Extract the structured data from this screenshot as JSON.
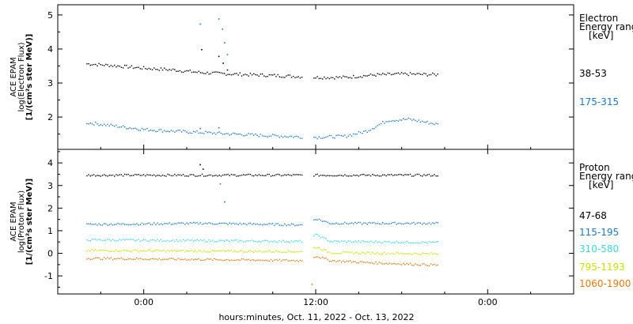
{
  "chart_data": {
    "type": "scatter",
    "xlabel": "hours:minutes, Oct. 11, 2022 - Oct. 13, 2022",
    "x_ticks": [
      "0:00",
      "12:00",
      "0:00"
    ],
    "panels": [
      {
        "id": "electron",
        "ylabel_lines": [
          "ACE EPAM",
          "log(Electron Flux)",
          "[1/(cm²s ster MeV)]"
        ],
        "ylim": [
          1.05,
          5.3
        ],
        "yticks": [
          "2",
          "3",
          "4",
          "5"
        ],
        "legend_title_lines": [
          "Electron",
          "Energy range",
          "[keV]"
        ],
        "series": [
          {
            "name": "38-53",
            "color": "#000000",
            "values": [
              [
                -4.0,
                3.58
              ],
              [
                -2.0,
                3.52
              ],
              [
                0.0,
                3.45
              ],
              [
                2.0,
                3.4
              ],
              [
                4.0,
                3.32
              ],
              [
                6.0,
                3.28
              ],
              [
                8.0,
                3.25
              ],
              [
                10.0,
                3.22
              ],
              [
                11.0,
                3.2
              ],
              [
                12.0,
                3.18
              ],
              [
                14.0,
                3.18
              ],
              [
                16.0,
                3.25
              ],
              [
                18.0,
                3.28
              ],
              [
                20.5,
                3.26
              ]
            ],
            "burst": [
              [
                4.0,
                4.0
              ],
              [
                5.2,
                3.8
              ],
              [
                5.5,
                3.6
              ],
              [
                5.8,
                3.4
              ]
            ]
          },
          {
            "name": "175-315",
            "color": "#1f78c8",
            "values": [
              [
                -4.0,
                1.85
              ],
              [
                -2.0,
                1.75
              ],
              [
                0.0,
                1.65
              ],
              [
                2.0,
                1.6
              ],
              [
                4.0,
                1.56
              ],
              [
                6.0,
                1.52
              ],
              [
                8.0,
                1.48
              ],
              [
                10.0,
                1.45
              ],
              [
                11.0,
                1.43
              ],
              [
                12.0,
                1.42
              ],
              [
                14.0,
                1.45
              ],
              [
                15.5,
                1.6
              ],
              [
                17.0,
                1.92
              ],
              [
                18.5,
                1.95
              ],
              [
                20.5,
                1.8
              ]
            ],
            "burst": [
              [
                3.9,
                4.75
              ],
              [
                5.2,
                4.9
              ],
              [
                5.45,
                4.6
              ],
              [
                5.6,
                4.2
              ],
              [
                5.8,
                3.85
              ],
              [
                3.9,
                1.68
              ],
              [
                5.2,
                1.7
              ]
            ]
          }
        ]
      },
      {
        "id": "proton",
        "ylabel_lines": [
          "ACE EPAM",
          "log(Proton Flux)",
          "[1/(cm²s ster MeV)]"
        ],
        "ylim": [
          -1.8,
          4.6
        ],
        "yticks": [
          "-1",
          "0",
          "1",
          "2",
          "3",
          "4"
        ],
        "legend_title_lines": [
          "Proton",
          "Energy range",
          "[keV]"
        ],
        "series": [
          {
            "name": "47-68",
            "color": "#000000",
            "values": [
              [
                -4.0,
                3.48
              ],
              [
                4.0,
                3.48
              ],
              [
                11.0,
                3.48
              ],
              [
                12.0,
                3.48
              ],
              [
                20.5,
                3.48
              ]
            ],
            "burst": [
              [
                3.9,
                3.95
              ],
              [
                4.1,
                3.75
              ]
            ]
          },
          {
            "name": "115-195",
            "color": "#1f78c8",
            "values": [
              [
                -4.0,
                1.3
              ],
              [
                4.0,
                1.35
              ],
              [
                11.0,
                1.28
              ],
              [
                12.0,
                1.55
              ],
              [
                13.0,
                1.35
              ],
              [
                20.5,
                1.35
              ]
            ],
            "burst": [
              [
                5.3,
                3.1
              ],
              [
                5.6,
                2.3
              ]
            ]
          },
          {
            "name": "310-580",
            "color": "#3fd7d7",
            "values": [
              [
                -4.0,
                0.62
              ],
              [
                4.0,
                0.58
              ],
              [
                11.0,
                0.55
              ],
              [
                12.0,
                0.85
              ],
              [
                13.0,
                0.55
              ],
              [
                20.5,
                0.5
              ]
            ],
            "burst": []
          },
          {
            "name": "795-1193",
            "color": "#c8e000",
            "values": [
              [
                -4.0,
                0.15
              ],
              [
                4.0,
                0.12
              ],
              [
                11.0,
                0.1
              ],
              [
                12.0,
                0.3
              ],
              [
                13.0,
                0.05
              ],
              [
                20.5,
                0.0
              ]
            ],
            "burst": []
          },
          {
            "name": "1060-1900",
            "color": "#e07a10",
            "values": [
              [
                -4.0,
                -0.2
              ],
              [
                4.0,
                -0.25
              ],
              [
                11.0,
                -0.3
              ],
              [
                12.0,
                -0.1
              ],
              [
                13.0,
                -0.3
              ],
              [
                16.0,
                -0.4
              ],
              [
                20.5,
                -0.5
              ]
            ],
            "burst": [
              [
                11.7,
                -1.35
              ]
            ]
          }
        ]
      }
    ]
  }
}
